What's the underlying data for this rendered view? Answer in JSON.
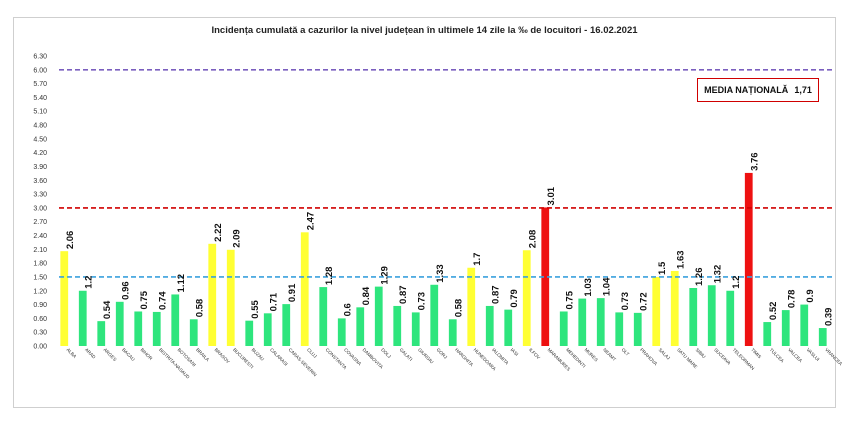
{
  "chart_data": {
    "type": "bar",
    "title": "Incidența cumulată a cazurilor la nivel județean în ultimele 14 zile la ‰ de locuitori - 16.02.2021",
    "xlabel": "",
    "ylabel": "",
    "ylim": [
      0,
      6.3
    ],
    "yticks": [
      "0.00",
      "0.30",
      "0.60",
      "0.90",
      "1.20",
      "1.50",
      "1.80",
      "2.10",
      "2.40",
      "2.70",
      "3.00",
      "3.30",
      "3.60",
      "3.90",
      "4.20",
      "4.50",
      "4.80",
      "5.10",
      "5.40",
      "5.70",
      "6.00",
      "6.30"
    ],
    "categories": [
      "ALBA",
      "ARAD",
      "ARGES",
      "BACAU",
      "BIHOR",
      "BISTRITA-NASAUD",
      "BOTOSANI",
      "BRAILA",
      "BRASOV",
      "BUCURESTI",
      "BUZAU",
      "CALARASI",
      "CARAS-SEVERIN",
      "CLUJ",
      "CONSTANTA",
      "COVASNA",
      "DAMBOVITA",
      "DOLJ",
      "GALATI",
      "GIURGIU",
      "GORJ",
      "HARGHITA",
      "HUNEDOARA",
      "IALOMITA",
      "IASI",
      "ILFOV",
      "MARAMURES",
      "MEHEDINTI",
      "MURES",
      "NEAMT",
      "OLT",
      "PRAHOVA",
      "SALAJ",
      "SATU MARE",
      "SIBIU",
      "SUCEAVA",
      "TELEORMAN",
      "TIMIS",
      "TULCEA",
      "VALCEA",
      "VASLUI",
      "VRANCEA"
    ],
    "values": [
      2.06,
      1.2,
      0.54,
      0.96,
      0.75,
      0.74,
      1.12,
      0.58,
      2.22,
      2.09,
      0.55,
      0.71,
      0.91,
      2.47,
      1.28,
      0.6,
      0.84,
      1.29,
      0.87,
      0.73,
      1.33,
      0.58,
      1.7,
      0.87,
      0.79,
      2.08,
      3.01,
      0.75,
      1.03,
      1.04,
      0.73,
      0.72,
      1.5,
      1.63,
      1.26,
      1.32,
      1.2,
      3.76,
      0.52,
      0.78,
      0.9,
      0.39
    ],
    "value_labels": [
      "2.06",
      "1.2",
      "0.54",
      "0.96",
      "0.75",
      "0.74",
      "1.12",
      "0.58",
      "2.22",
      "2.09",
      "0.55",
      "0.71",
      "0.91",
      "2.47",
      "1.28",
      "0.6",
      "0.84",
      "1.29",
      "0.87",
      "0.73",
      "1.33",
      "0.58",
      "1.7",
      "0.87",
      "0.79",
      "2.08",
      "3.01",
      "0.75",
      "1.03",
      "1.04",
      "0.73",
      "0.72",
      "1.5",
      "1.63",
      "1.26",
      "1.32",
      "1.2",
      "3.76",
      "0.52",
      "0.78",
      "0.9",
      "0.39"
    ],
    "bar_colors": {
      "below_1_5": "#2ee57d",
      "1_5_to_3": "#ffff33",
      "above_3": "#ee1111"
    },
    "reference_lines": [
      {
        "value": 6.0,
        "color": "#7b5fbf"
      },
      {
        "value": 3.0,
        "color": "#d00000"
      },
      {
        "value": 1.5,
        "color": "#3aa0dd"
      }
    ],
    "annotation": {
      "label": "MEDIA NAȚIONALĂ",
      "value": "1,71"
    }
  }
}
